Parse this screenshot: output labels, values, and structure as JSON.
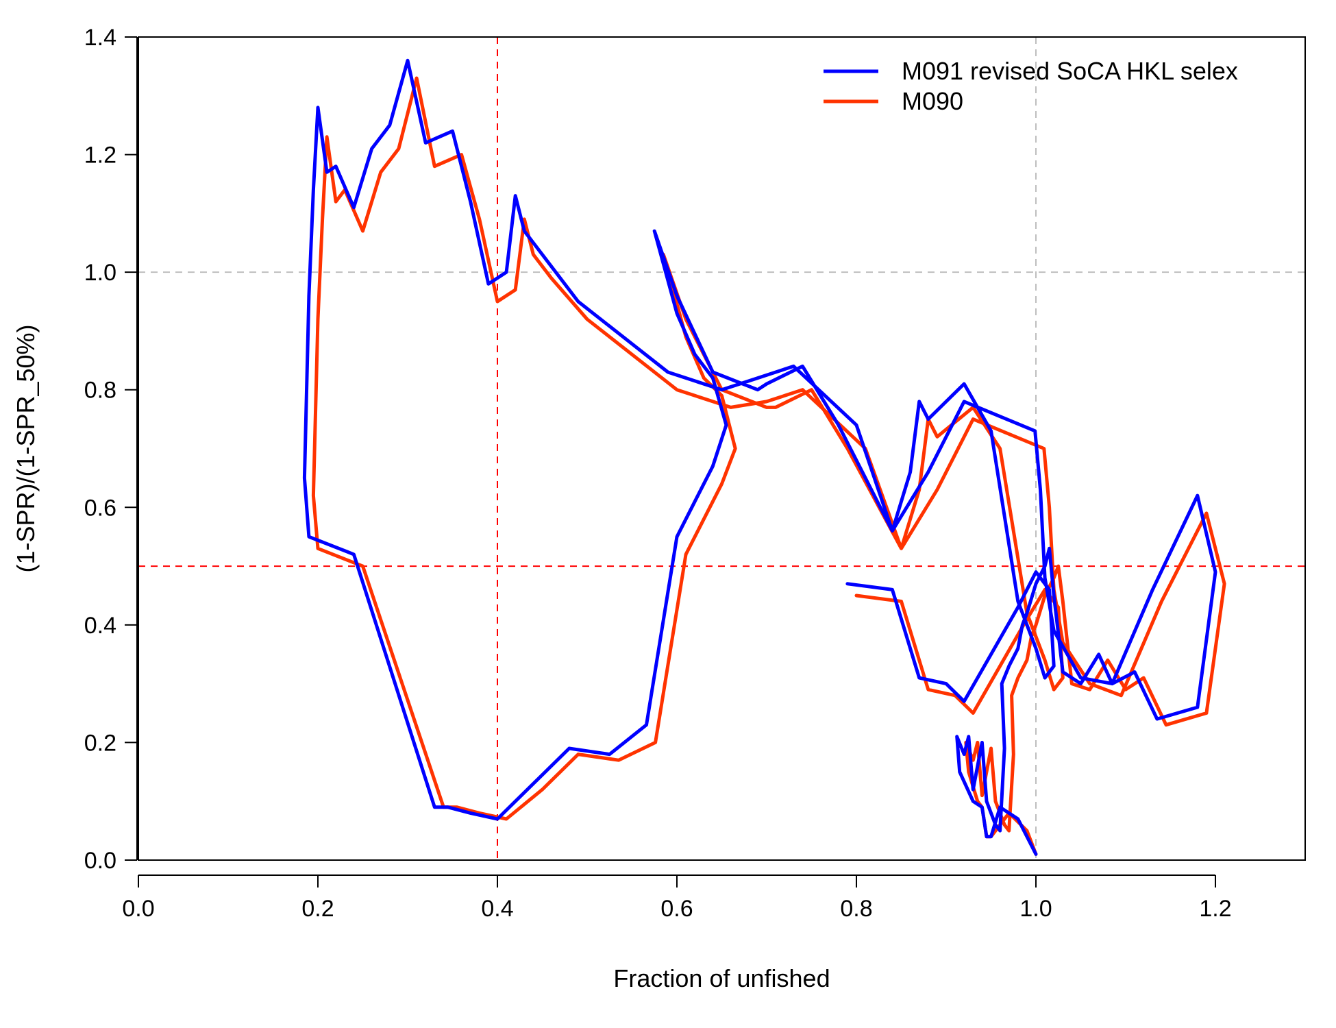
{
  "chart_data": {
    "type": "line",
    "title": "",
    "xlabel": "Fraction of unfished",
    "ylabel": "(1-SPR)/(1-SPR_50%)",
    "xlim": [
      0,
      1.3
    ],
    "ylim": [
      0,
      1.4
    ],
    "x_ticks": [
      "0.0",
      "0.2",
      "0.4",
      "0.6",
      "0.8",
      "1.0",
      "1.2"
    ],
    "y_ticks": [
      "0.0",
      "0.2",
      "0.4",
      "0.6",
      "0.8",
      "1.0",
      "1.2",
      "1.4"
    ],
    "grid": false,
    "legend_position": "top-right",
    "reference_lines": [
      {
        "orientation": "vertical",
        "value": 0.4,
        "color": "#ff0000",
        "style": "dashed"
      },
      {
        "orientation": "horizontal",
        "value": 0.5,
        "color": "#ff0000",
        "style": "dashed"
      },
      {
        "orientation": "vertical",
        "value": 1.0,
        "color": "#bebebe",
        "style": "dashed"
      },
      {
        "orientation": "horizontal",
        "value": 1.0,
        "color": "#bebebe",
        "style": "dashed"
      }
    ],
    "series": [
      {
        "name": "M091 revised SoCA HKL selex",
        "color": "#0000ff",
        "x": [
          1.0,
          0.98,
          0.96,
          0.95,
          0.945,
          0.94,
          0.93,
          0.915,
          0.912,
          0.92,
          0.925,
          0.93,
          0.94,
          0.945,
          0.955,
          0.96,
          0.965,
          0.962,
          0.97,
          0.98,
          0.985,
          0.99,
          1.0,
          1.01,
          1.015,
          1.02,
          1.03,
          1.05,
          1.07,
          1.085,
          1.11,
          1.135,
          1.18,
          1.2,
          1.18,
          1.13,
          1.085,
          1.05,
          1.02,
          1.01,
          1.005,
          0.999,
          0.92,
          0.88,
          0.84,
          0.78,
          0.74,
          0.7,
          0.69,
          0.64,
          0.6,
          0.575,
          0.575,
          0.6,
          0.62,
          0.64,
          0.655,
          0.64,
          0.6,
          0.566,
          0.525,
          0.48,
          0.44,
          0.4,
          0.37,
          0.345,
          0.33,
          0.24,
          0.19,
          0.185,
          0.19,
          0.195,
          0.2,
          0.21,
          0.22,
          0.24,
          0.26,
          0.28,
          0.3,
          0.32,
          0.35,
          0.37,
          0.39,
          0.41,
          0.42,
          0.43,
          0.45,
          0.49,
          0.59,
          0.65,
          0.69,
          0.73,
          0.8,
          0.84,
          0.86,
          0.87,
          0.88,
          0.92,
          0.95,
          0.98,
          1.0,
          1.01,
          1.02,
          1.015,
          1.0,
          0.98,
          0.92,
          0.9,
          0.87,
          0.84,
          0.79
        ],
        "y": [
          0.01,
          0.07,
          0.09,
          0.04,
          0.04,
          0.09,
          0.1,
          0.15,
          0.21,
          0.18,
          0.21,
          0.12,
          0.2,
          0.1,
          0.06,
          0.05,
          0.19,
          0.3,
          0.33,
          0.36,
          0.4,
          0.42,
          0.47,
          0.5,
          0.53,
          0.45,
          0.32,
          0.3,
          0.35,
          0.3,
          0.32,
          0.24,
          0.26,
          0.49,
          0.62,
          0.46,
          0.3,
          0.31,
          0.39,
          0.48,
          0.63,
          0.73,
          0.78,
          0.66,
          0.56,
          0.74,
          0.84,
          0.81,
          0.8,
          0.83,
          0.96,
          1.07,
          1.07,
          0.93,
          0.86,
          0.82,
          0.74,
          0.67,
          0.55,
          0.23,
          0.18,
          0.19,
          0.13,
          0.07,
          0.08,
          0.09,
          0.09,
          0.52,
          0.55,
          0.65,
          0.96,
          1.14,
          1.28,
          1.17,
          1.18,
          1.11,
          1.21,
          1.25,
          1.36,
          1.22,
          1.24,
          1.12,
          0.98,
          1.0,
          1.13,
          1.07,
          1.03,
          0.95,
          0.83,
          0.8,
          0.82,
          0.84,
          0.74,
          0.56,
          0.66,
          0.78,
          0.75,
          0.81,
          0.73,
          0.44,
          0.36,
          0.31,
          0.33,
          0.46,
          0.49,
          0.43,
          0.27,
          0.3,
          0.31,
          0.46,
          0.47
        ]
      },
      {
        "name": "M090",
        "color": "#ff3300",
        "x": [
          1.0,
          0.99,
          0.97,
          0.95,
          0.945,
          0.94,
          0.935,
          0.925,
          0.922,
          0.93,
          0.935,
          0.94,
          0.95,
          0.955,
          0.965,
          0.97,
          0.975,
          0.973,
          0.98,
          0.99,
          0.995,
          1.0,
          1.01,
          1.02,
          1.025,
          1.03,
          1.04,
          1.06,
          1.08,
          1.1,
          1.12,
          1.145,
          1.19,
          1.21,
          1.19,
          1.14,
          1.095,
          1.06,
          1.03,
          1.02,
          1.015,
          1.009,
          0.93,
          0.89,
          0.85,
          0.79,
          0.75,
          0.71,
          0.7,
          0.65,
          0.61,
          0.585,
          0.585,
          0.61,
          0.63,
          0.65,
          0.665,
          0.65,
          0.61,
          0.576,
          0.535,
          0.49,
          0.45,
          0.41,
          0.38,
          0.355,
          0.34,
          0.25,
          0.2,
          0.195,
          0.2,
          0.205,
          0.21,
          0.22,
          0.23,
          0.25,
          0.27,
          0.29,
          0.31,
          0.33,
          0.36,
          0.38,
          0.4,
          0.42,
          0.43,
          0.44,
          0.46,
          0.5,
          0.6,
          0.66,
          0.7,
          0.74,
          0.81,
          0.85,
          0.87,
          0.88,
          0.89,
          0.93,
          0.96,
          0.99,
          1.01,
          1.02,
          1.03,
          1.025,
          1.01,
          0.99,
          0.93,
          0.91,
          0.88,
          0.85,
          0.8
        ],
        "y": [
          0.01,
          0.05,
          0.08,
          0.04,
          0.04,
          0.09,
          0.1,
          0.15,
          0.2,
          0.17,
          0.2,
          0.11,
          0.19,
          0.1,
          0.06,
          0.05,
          0.18,
          0.28,
          0.31,
          0.34,
          0.38,
          0.4,
          0.45,
          0.48,
          0.5,
          0.44,
          0.3,
          0.29,
          0.34,
          0.29,
          0.31,
          0.23,
          0.25,
          0.47,
          0.59,
          0.44,
          0.28,
          0.3,
          0.37,
          0.46,
          0.6,
          0.7,
          0.75,
          0.63,
          0.53,
          0.7,
          0.8,
          0.77,
          0.77,
          0.8,
          0.92,
          1.03,
          1.03,
          0.89,
          0.82,
          0.79,
          0.7,
          0.64,
          0.52,
          0.2,
          0.17,
          0.18,
          0.12,
          0.07,
          0.08,
          0.09,
          0.09,
          0.5,
          0.53,
          0.62,
          0.92,
          1.09,
          1.23,
          1.12,
          1.14,
          1.07,
          1.17,
          1.21,
          1.33,
          1.18,
          1.2,
          1.09,
          0.95,
          0.97,
          1.09,
          1.03,
          0.99,
          0.92,
          0.8,
          0.77,
          0.78,
          0.8,
          0.7,
          0.53,
          0.63,
          0.75,
          0.72,
          0.77,
          0.7,
          0.42,
          0.34,
          0.29,
          0.31,
          0.43,
          0.46,
          0.41,
          0.25,
          0.28,
          0.29,
          0.44,
          0.45
        ]
      }
    ]
  }
}
